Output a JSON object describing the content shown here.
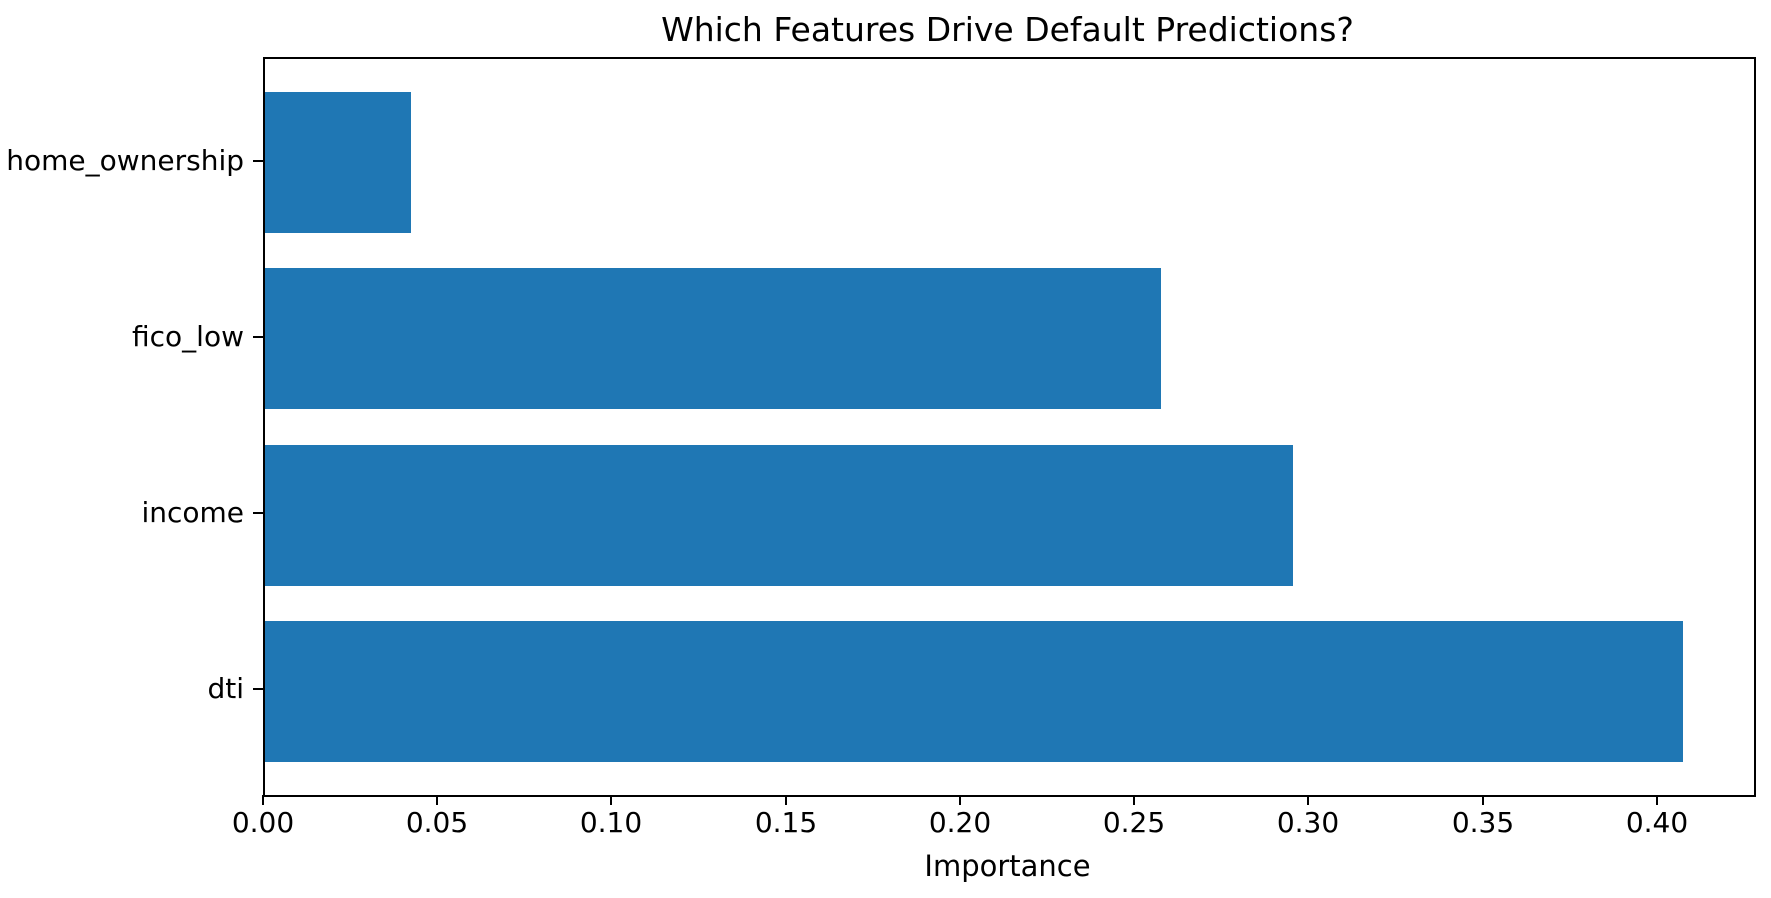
{
  "chart": {
    "title": "Which Features Drive Default Predictions?",
    "xlabel": "Importance"
  },
  "chart_data": {
    "type": "bar",
    "orientation": "horizontal",
    "title": "Which Features Drive Default Predictions?",
    "xlabel": "Importance",
    "ylabel": "",
    "categories_top_to_bottom": [
      "home_ownership",
      "fico_low",
      "income",
      "dti"
    ],
    "values": [
      0.042,
      0.257,
      0.295,
      0.407
    ],
    "xticks": [
      0.0,
      0.05,
      0.1,
      0.15,
      0.2,
      0.25,
      0.3,
      0.35,
      0.4
    ],
    "xtick_format_decimals": 2,
    "xlim": [
      0,
      0.4273
    ],
    "bar_color": "#1f77b4",
    "axis_color": "#000000",
    "grid": false,
    "legend": "none"
  }
}
